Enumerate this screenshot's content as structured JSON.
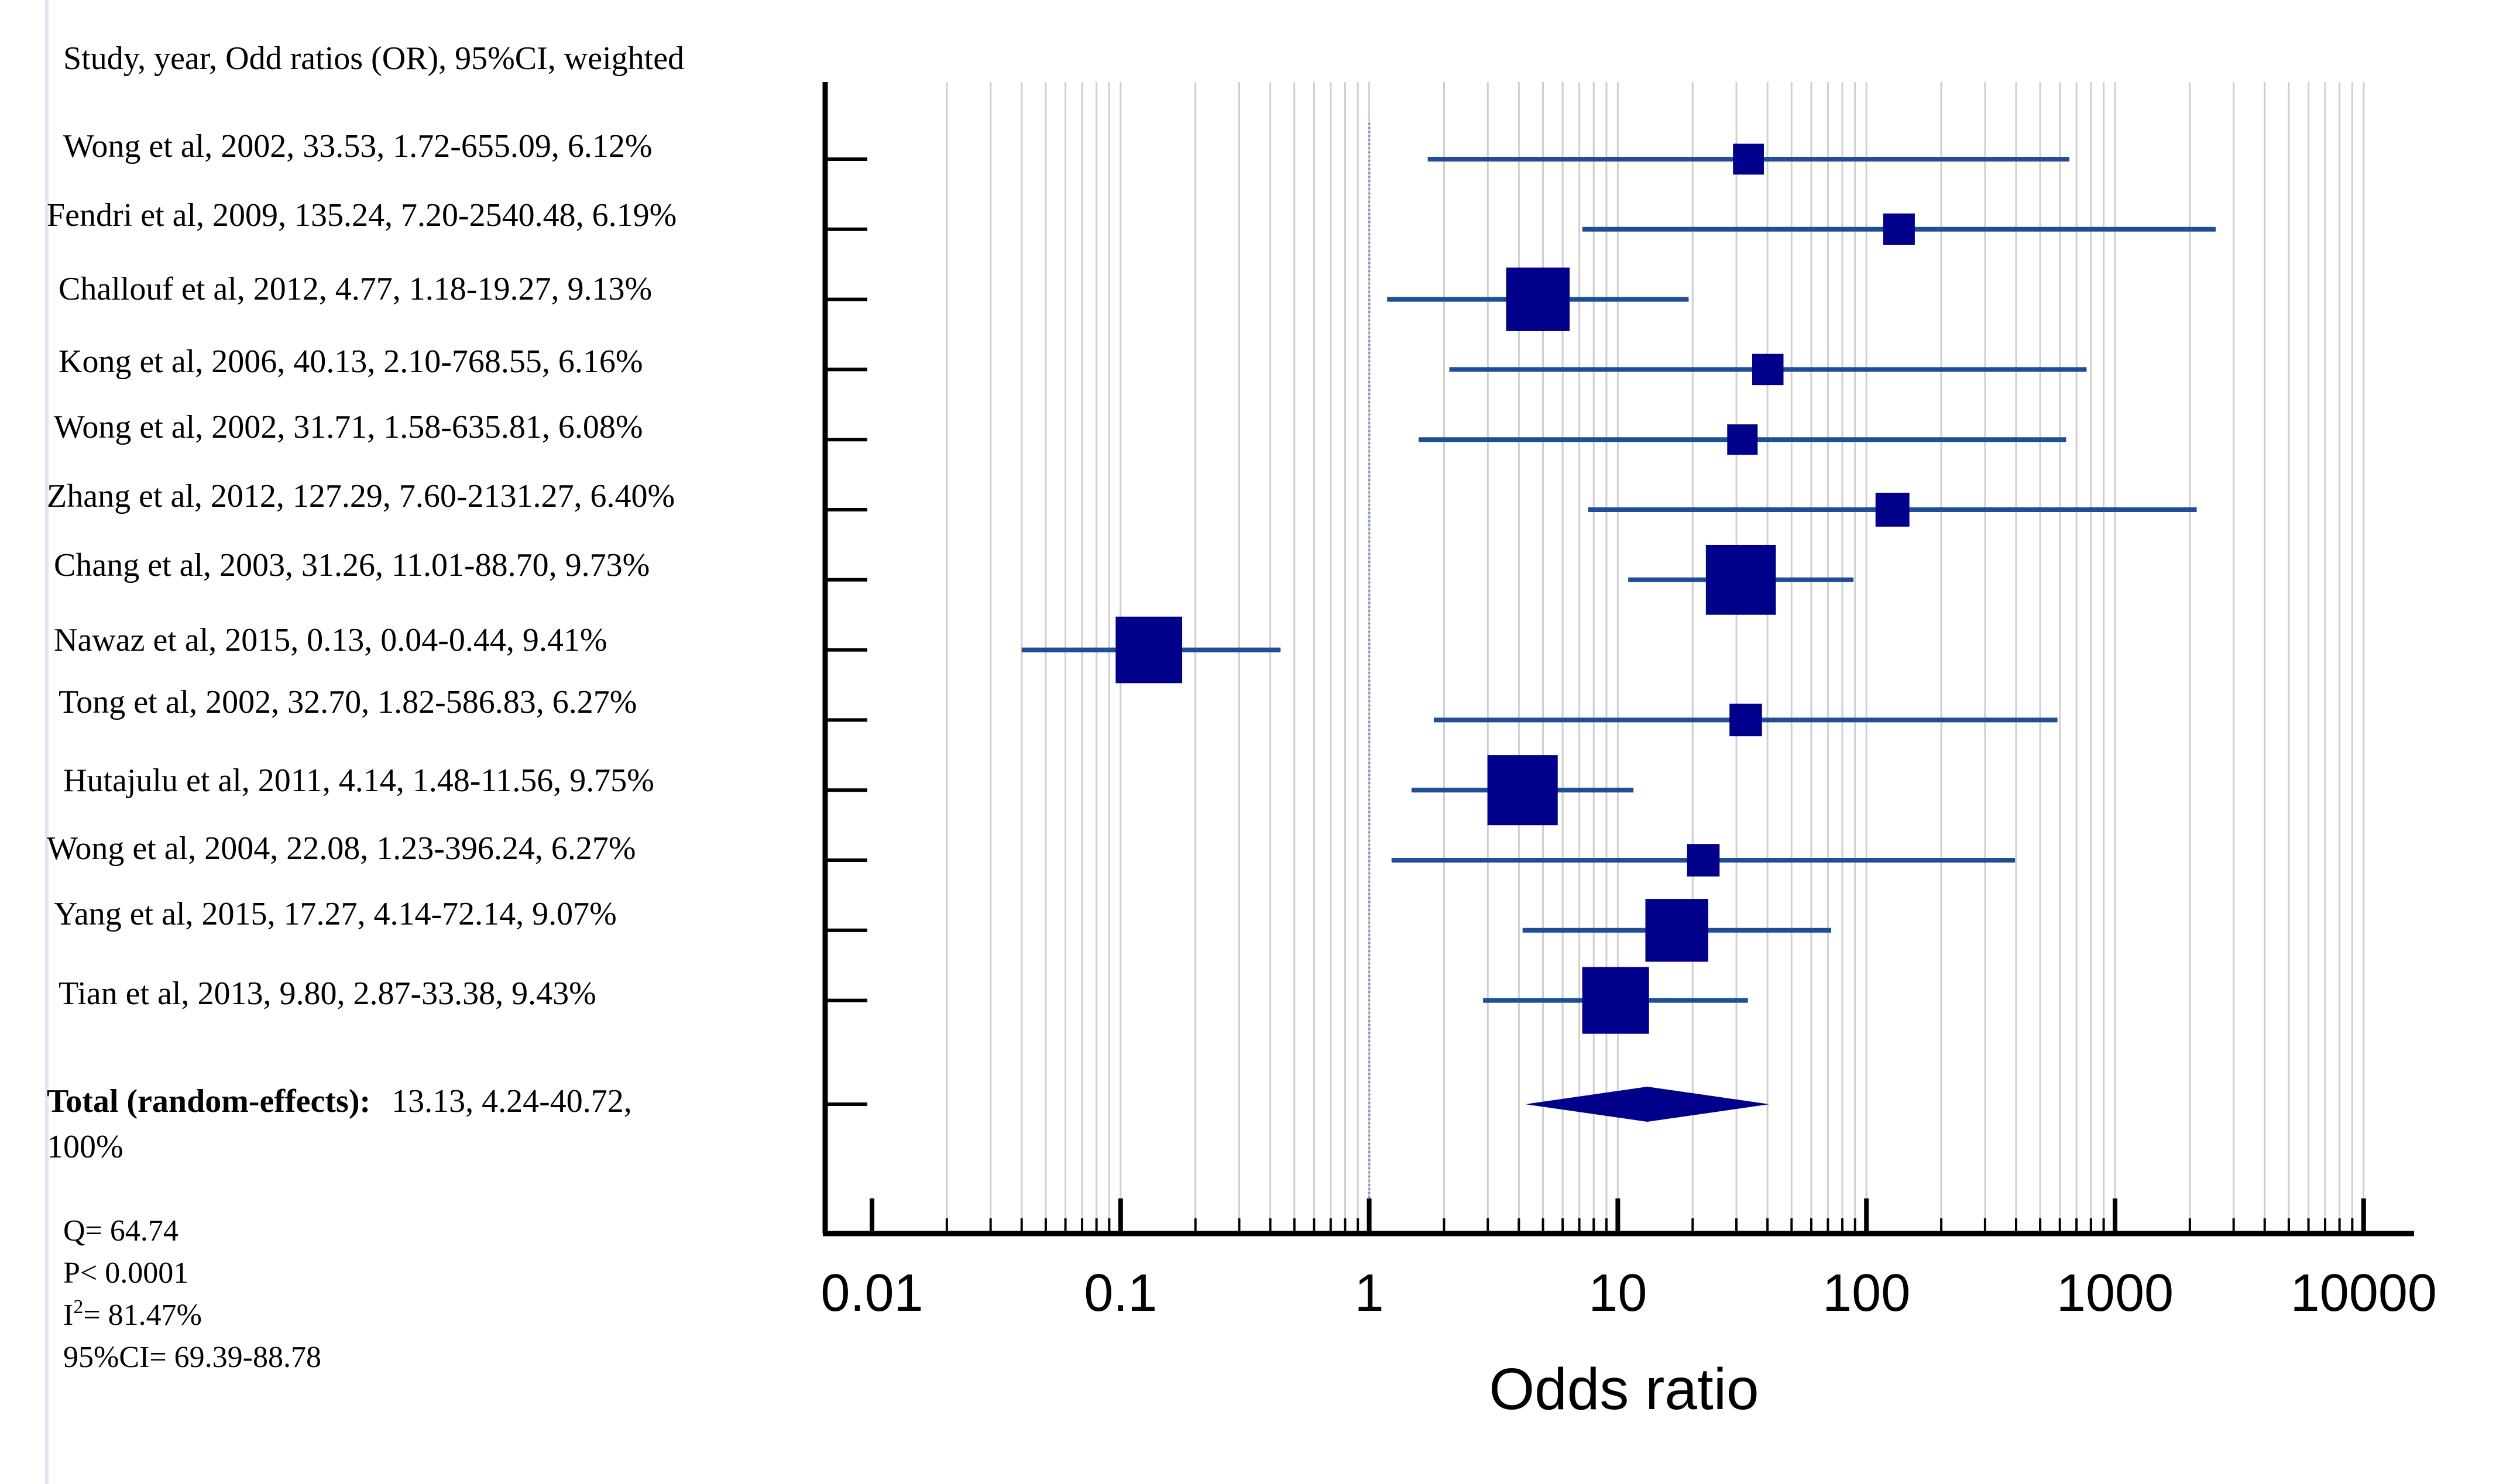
{
  "chart_data": {
    "type": "forest",
    "header": "Study, year, Odd ratios (OR), 95%CI, weighted",
    "xlabel": "Odds ratio",
    "x_scale": "log",
    "xlim": [
      0.01,
      10000
    ],
    "x_ticks": [
      {
        "value": 0.01,
        "label": "0.01"
      },
      {
        "value": 0.1,
        "label": "0.1"
      },
      {
        "value": 1,
        "label": "1"
      },
      {
        "value": 10,
        "label": "10"
      },
      {
        "value": 100,
        "label": "100"
      },
      {
        "value": 1000,
        "label": "1000"
      },
      {
        "value": 10000,
        "label": "10000"
      }
    ],
    "reference_line": 1,
    "studies": [
      {
        "label": "Wong et al, 2002, 33.53, 1.72-655.09, 6.12%",
        "or": 33.53,
        "lower": 1.72,
        "upper": 655.09,
        "weight": 6.12
      },
      {
        "label": "Fendri et al, 2009, 135.24, 7.20-2540.48, 6.19%",
        "or": 135.24,
        "lower": 7.2,
        "upper": 2540.48,
        "weight": 6.19
      },
      {
        "label": "Challouf et al, 2012, 4.77, 1.18-19.27, 9.13%",
        "or": 4.77,
        "lower": 1.18,
        "upper": 19.27,
        "weight": 9.13
      },
      {
        "label": "Kong et al, 2006, 40.13, 2.10-768.55, 6.16%",
        "or": 40.13,
        "lower": 2.1,
        "upper": 768.55,
        "weight": 6.16
      },
      {
        "label": "Wong et al, 2002, 31.71, 1.58-635.81, 6.08%",
        "or": 31.71,
        "lower": 1.58,
        "upper": 635.81,
        "weight": 6.08
      },
      {
        "label": "Zhang et al, 2012, 127.29, 7.60-2131.27, 6.40%",
        "or": 127.29,
        "lower": 7.6,
        "upper": 2131.27,
        "weight": 6.4
      },
      {
        "label": "Chang et al, 2003, 31.26, 11.01-88.70, 9.73%",
        "or": 31.26,
        "lower": 11.01,
        "upper": 88.7,
        "weight": 9.73
      },
      {
        "label": "Nawaz et al, 2015, 0.13, 0.04-0.44, 9.41%",
        "or": 0.13,
        "lower": 0.04,
        "upper": 0.44,
        "weight": 9.41
      },
      {
        "label": "Tong et al, 2002, 32.70, 1.82-586.83, 6.27%",
        "or": 32.7,
        "lower": 1.82,
        "upper": 586.83,
        "weight": 6.27
      },
      {
        "label": "Hutajulu et al, 2011, 4.14, 1.48-11.56, 9.75%",
        "or": 4.14,
        "lower": 1.48,
        "upper": 11.56,
        "weight": 9.75
      },
      {
        "label": "Wong et al, 2004, 22.08, 1.23-396.24, 6.27%",
        "or": 22.08,
        "lower": 1.23,
        "upper": 396.24,
        "weight": 6.27
      },
      {
        "label": "Yang et al, 2015, 17.27, 4.14-72.14, 9.07%",
        "or": 17.27,
        "lower": 4.14,
        "upper": 72.14,
        "weight": 9.07
      },
      {
        "label": "Tian et al, 2013, 9.80, 2.87-33.38, 9.43%",
        "or": 9.8,
        "lower": 2.87,
        "upper": 33.38,
        "weight": 9.43
      }
    ],
    "total": {
      "label_bold": "Total (random-effects):",
      "label_rest": "13.13, 4.24-40.72,",
      "label_line2": "100%",
      "or": 13.13,
      "lower": 4.24,
      "upper": 40.72
    },
    "heterogeneity": {
      "q": "Q= 64.74",
      "p": "P< 0.0001",
      "i2_prefix": "I",
      "i2_sup": "2",
      "i2_value": "= 81.47%",
      "ci": "95%CI= 69.39-88.78"
    }
  },
  "colors": {
    "marker": "#00008b",
    "ci_line": "#1f4e96",
    "grid": "#cfcfcf",
    "reference": "#7a9cc8",
    "axis": "#000000",
    "text": "#000000",
    "left_border": "#dfe9f3"
  }
}
